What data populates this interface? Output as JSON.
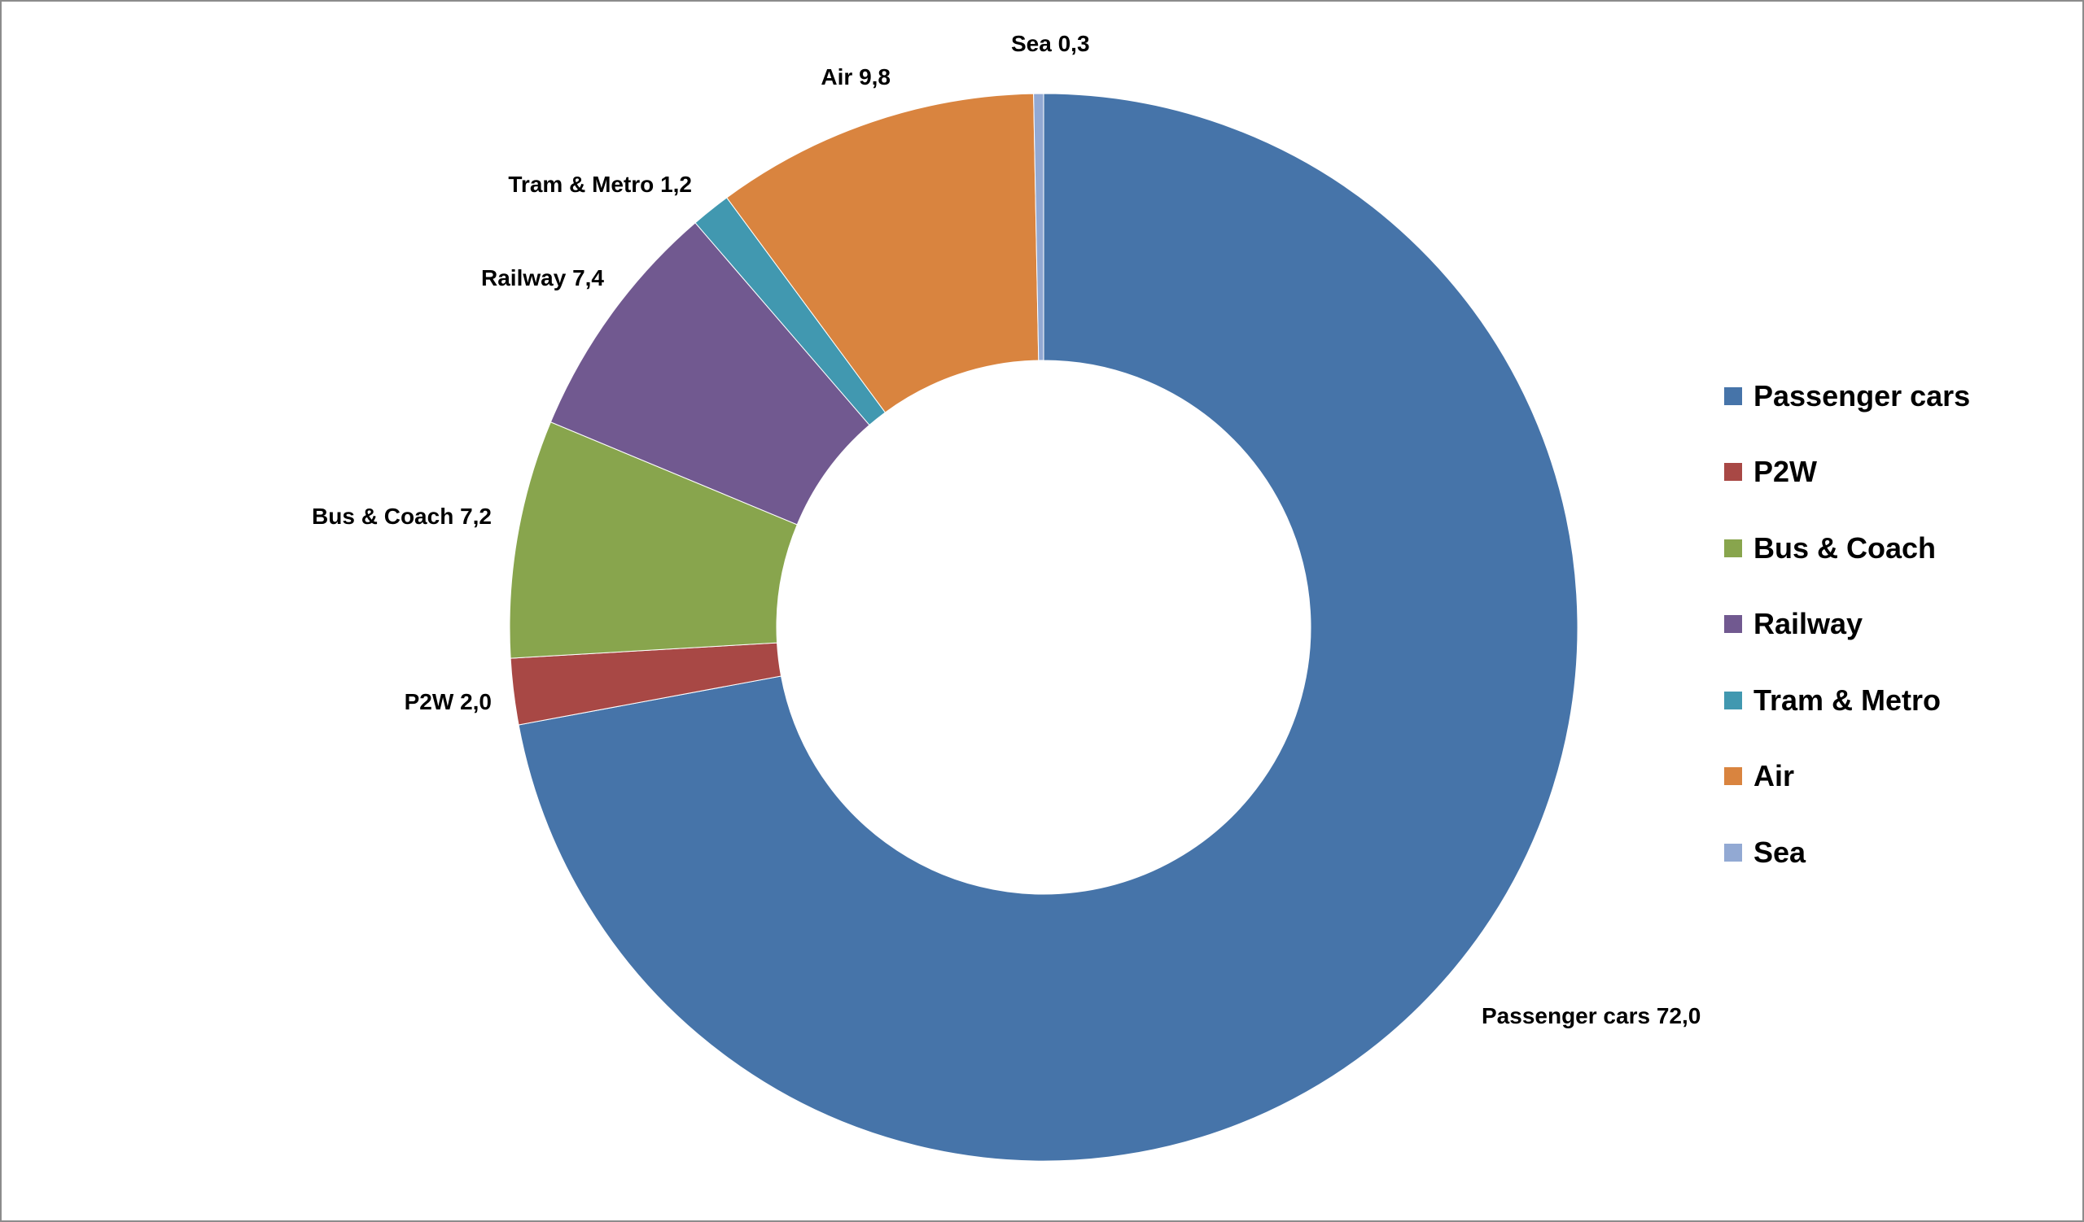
{
  "chart_data": {
    "type": "pie",
    "variant": "donut",
    "categories": [
      "Passenger cars",
      "P2W",
      "Bus & Coach",
      "Railway",
      "Tram & Metro",
      "Air",
      "Sea"
    ],
    "values": [
      72.0,
      2.0,
      7.2,
      7.4,
      1.2,
      9.8,
      0.3
    ],
    "data_labels": [
      "Passenger cars 72,0",
      "P2W 2,0",
      "Bus & Coach 7,2",
      "Railway 7,4",
      "Tram & Metro 1,2",
      "Air 9,8",
      "Sea 0,3"
    ],
    "colors": [
      "#4674A9",
      "#A84845",
      "#88A54D",
      "#715990",
      "#4198B0",
      "#D9843F",
      "#92A9D3"
    ],
    "legend_position": "right",
    "start": "top",
    "direction": "clockwise"
  }
}
